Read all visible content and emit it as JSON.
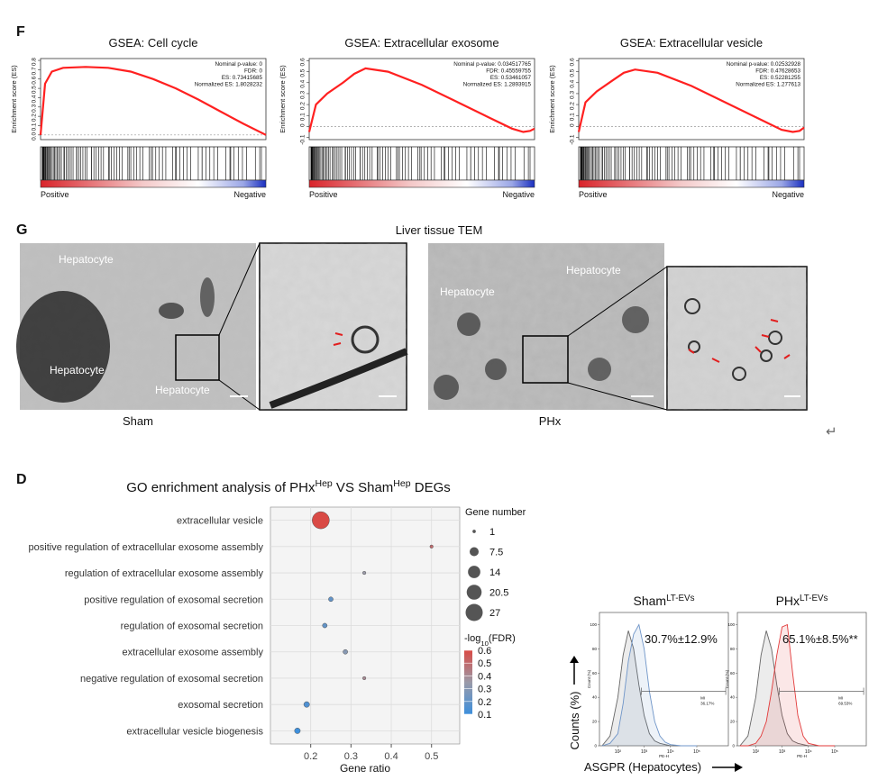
{
  "panel_labels": {
    "f": "F",
    "g": "G",
    "d": "D"
  },
  "tem": {
    "title": "Liver tissue TEM",
    "sham": {
      "label": "Sham",
      "cells": [
        "Hepatocyte",
        "Hepatocyte",
        "Hepatocyte"
      ]
    },
    "phx": {
      "label": "PHx",
      "cells": [
        "Hepatocyte",
        "Hepatocyte"
      ]
    }
  },
  "return_symbol": "↵",
  "flow_axes": {
    "y_label": "Counts (%)",
    "x_label": "ASGPR (Hepatocytes)"
  },
  "chart_data": [
    {
      "type": "line",
      "title": "GSEA: Cell cycle",
      "y_label": "Enrichment score (ES)",
      "stats": [
        "Nominal p-value: 0",
        "FDR: 0",
        "ES: 0.73415685",
        "Normalized ES: 1.8028232"
      ],
      "start_label": "Positive",
      "end_label": "Negative",
      "color": "#ff2020",
      "x": [
        0,
        2,
        5,
        10,
        20,
        30,
        40,
        50,
        60,
        70,
        80,
        90,
        100
      ],
      "values": [
        0,
        0.55,
        0.68,
        0.72,
        0.73,
        0.72,
        0.68,
        0.6,
        0.5,
        0.38,
        0.25,
        0.12,
        0.0
      ],
      "xlim": [
        0,
        100
      ],
      "ylim": [
        -0.05,
        0.82
      ],
      "yticks": [
        {
          "value": 0,
          "label": "0.0"
        },
        0.1,
        0.2,
        0.3,
        0.4,
        0.5,
        0.6,
        0.7,
        0.8
      ]
    },
    {
      "type": "line",
      "title": "GSEA: Extracellular exosome",
      "y_label": "Enrichment score (ES)",
      "stats": [
        "Nominal p-value: 0.034517765",
        "FDR: 0.45559755",
        "ES: 0.53461057",
        "Normalized ES: 1.2893915"
      ],
      "start_label": "Positive",
      "end_label": "Negative",
      "color": "#ff2020",
      "x": [
        0,
        3,
        8,
        15,
        20,
        25,
        35,
        50,
        65,
        80,
        90,
        95,
        98,
        100
      ],
      "values": [
        -0.05,
        0.2,
        0.3,
        0.4,
        0.48,
        0.53,
        0.5,
        0.38,
        0.23,
        0.08,
        -0.02,
        -0.05,
        -0.04,
        -0.02
      ],
      "xlim": [
        0,
        100
      ],
      "ylim": [
        -0.12,
        0.62
      ],
      "yticks": [
        -0.1,
        0,
        0.1,
        0.2,
        0.3,
        0.4,
        0.5,
        0.6
      ]
    },
    {
      "type": "line",
      "title": "GSEA: Extracellular vesicle",
      "y_label": "Enrichment score (ES)",
      "stats": [
        "Nominal p-value: 0.02532928",
        "FDR: 0.47628653",
        "ES: 0.52281255",
        "Normalized ES: 1.277613"
      ],
      "start_label": "Positive",
      "end_label": "Negative",
      "color": "#ff2020",
      "x": [
        0,
        3,
        8,
        15,
        20,
        25,
        35,
        50,
        65,
        80,
        90,
        95,
        98,
        100
      ],
      "values": [
        -0.05,
        0.22,
        0.32,
        0.42,
        0.49,
        0.52,
        0.49,
        0.37,
        0.22,
        0.07,
        -0.03,
        -0.05,
        -0.04,
        -0.01
      ],
      "xlim": [
        0,
        100
      ],
      "ylim": [
        -0.12,
        0.62
      ],
      "yticks": [
        -0.1,
        0,
        0.1,
        0.2,
        0.3,
        0.4,
        0.5,
        0.6
      ]
    },
    {
      "type": "bubble",
      "title_parts": [
        "GO enrichment analysis of PHx",
        "Hep",
        " VS Sham",
        "Hep",
        " DEGs"
      ],
      "x_label": "Gene ratio",
      "categories": [
        "extracellular vesicle",
        "positive regulation of extracellular exosome assembly",
        "regulation of extracellular exosome assembly",
        "positive regulation of exosomal secretion",
        "regulation of exosomal secretion",
        "extracellular exosome assembly",
        "negative regulation of exosomal secretion",
        "exosomal secretion",
        "extracellular vesicle biogenesis"
      ],
      "x": [
        0.225,
        0.5,
        0.333,
        0.25,
        0.235,
        0.286,
        0.333,
        0.19,
        0.167
      ],
      "sizes": [
        27,
        1,
        1,
        2,
        2,
        2,
        1,
        3,
        3
      ],
      "fdr": [
        0.6,
        0.5,
        0.35,
        0.2,
        0.2,
        0.3,
        0.4,
        0.15,
        0.1
      ],
      "xlim": [
        0.1,
        0.57
      ],
      "xticks": [
        0.2,
        0.3,
        0.4,
        0.5
      ],
      "size_legend": {
        "title": "Gene number",
        "values": [
          1,
          7.5,
          14,
          20.5,
          27
        ]
      },
      "color_legend": {
        "title_parts": [
          "-log",
          "10",
          "(FDR)"
        ],
        "values": [
          0.6,
          0.5,
          0.4,
          0.3,
          0.2,
          0.1
        ],
        "colors": [
          "#3d8fdc",
          "#9a9aa8",
          "#d94a45"
        ]
      }
    },
    {
      "type": "density",
      "title_parts": [
        "Sham",
        "LT-EVs"
      ],
      "annotation": "30.7%±12.9%",
      "gate_label": "MI",
      "gate_value": "36.17%",
      "x_label": "PE-H",
      "y_label": "Count (%)",
      "xlim": [
        1.3,
        6.2
      ],
      "xticks": [
        {
          "value": 2,
          "label": "10²"
        },
        {
          "value": 3,
          "label": "10³"
        },
        {
          "value": 4,
          "label": "10⁴"
        },
        {
          "value": 5,
          "label": "10⁵"
        }
      ],
      "ylim": [
        0,
        110
      ],
      "yticks": [
        0,
        20,
        40,
        60,
        80,
        100
      ],
      "gate": [
        2.9,
        6.1,
        45
      ],
      "x": [
        1.4,
        1.7,
        2.0,
        2.2,
        2.4,
        2.6,
        2.8,
        3.0,
        3.2,
        3.4,
        3.6,
        3.8,
        4.0,
        4.4,
        5.0
      ],
      "series": [
        {
          "color": "#666666",
          "values": [
            0,
            8,
            40,
            75,
            95,
            80,
            50,
            25,
            10,
            4,
            2,
            1,
            0,
            0,
            0
          ]
        },
        {
          "color": "#6f95c8",
          "values": [
            0,
            2,
            10,
            35,
            70,
            92,
            100,
            80,
            45,
            20,
            8,
            3,
            1,
            0,
            0
          ]
        }
      ]
    },
    {
      "type": "density",
      "title_parts": [
        "PHx",
        "LT-EVs"
      ],
      "annotation": "65.1%±8.5%**",
      "gate_label": "MI",
      "gate_value": "69.53%",
      "x_label": "PE-H",
      "y_label": "Count (%)",
      "xlim": [
        1.3,
        6.2
      ],
      "xticks": [
        {
          "value": 2,
          "label": "10²"
        },
        {
          "value": 3,
          "label": "10³"
        },
        {
          "value": 4,
          "label": "10⁴"
        },
        {
          "value": 5,
          "label": "10⁵"
        }
      ],
      "ylim": [
        0,
        110
      ],
      "yticks": [
        0,
        20,
        40,
        60,
        80,
        100
      ],
      "gate": [
        2.9,
        6.1,
        45
      ],
      "x": [
        1.4,
        1.7,
        2.0,
        2.2,
        2.4,
        2.6,
        2.8,
        3.0,
        3.2,
        3.4,
        3.6,
        3.8,
        4.0,
        4.4,
        5.0
      ],
      "series": [
        {
          "color": "#666666",
          "values": [
            0,
            8,
            40,
            75,
            95,
            80,
            50,
            25,
            10,
            4,
            2,
            1,
            0,
            0,
            0
          ]
        },
        {
          "color": "#e23a3a",
          "values": [
            0,
            0,
            2,
            8,
            20,
            45,
            75,
            98,
            100,
            60,
            25,
            8,
            2,
            0,
            0
          ]
        }
      ]
    }
  ]
}
